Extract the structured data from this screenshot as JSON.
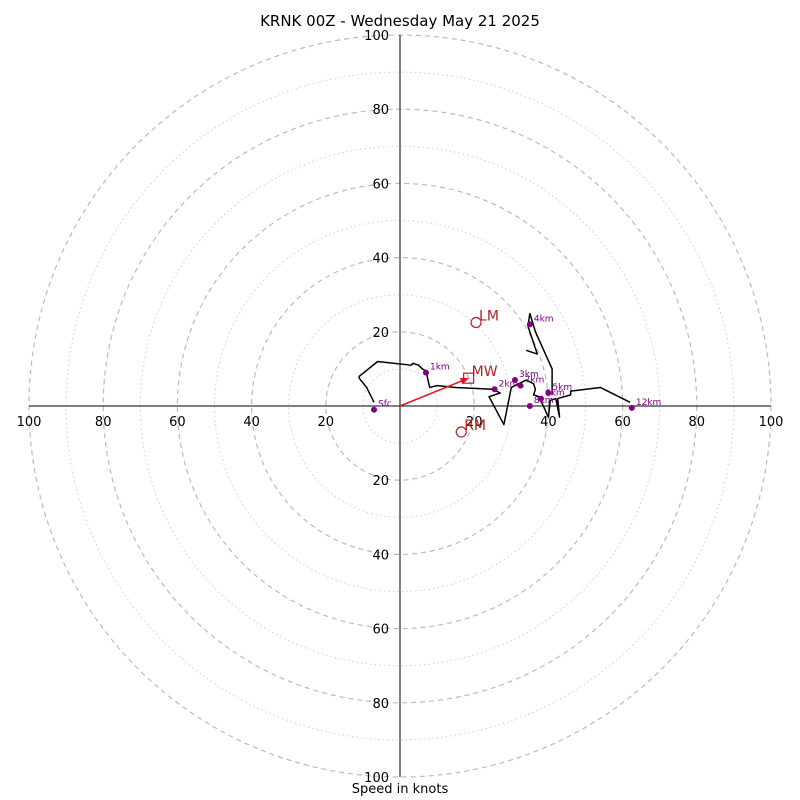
{
  "chart_data": {
    "type": "scatter",
    "title": "KRNK 00Z - Wednesday May 21 2025",
    "xlabel": "Speed in knots",
    "ylim": [
      -100,
      100
    ],
    "xlim": [
      -100,
      100
    ],
    "grid": true,
    "rings": [
      10,
      20,
      30,
      40,
      50,
      60,
      70,
      80,
      90,
      100
    ],
    "tick_labels": {
      "left": [
        "100",
        "80",
        "60",
        "40",
        "20"
      ],
      "right": [
        "20",
        "40",
        "60",
        "80",
        "100"
      ],
      "top": [
        "100",
        "80",
        "60",
        "40",
        "20"
      ],
      "bottom": [
        "20",
        "40",
        "60",
        "80",
        "100"
      ]
    },
    "series": [
      {
        "color": "#000000",
        "points": [
          [
            -7,
            1
          ],
          [
            -9,
            5
          ],
          [
            -11,
            7.5
          ],
          [
            -11,
            8
          ],
          [
            -6,
            12
          ],
          [
            3,
            11
          ],
          [
            3.5,
            11.5
          ],
          [
            5,
            11
          ],
          [
            6,
            10
          ],
          [
            7,
            9.5
          ],
          [
            8,
            5
          ],
          [
            10,
            5.5
          ],
          [
            15,
            5
          ],
          [
            25,
            4.5
          ],
          [
            27,
            3.5
          ],
          [
            24,
            2.5
          ],
          [
            28,
            -5
          ],
          [
            30,
            5
          ],
          [
            34,
            7
          ],
          [
            36,
            6
          ],
          [
            36.5,
            4.5
          ],
          [
            36,
            3
          ],
          [
            37.5,
            2.5
          ],
          [
            40,
            -3
          ],
          [
            40.5,
            1.5
          ],
          [
            42,
            2
          ],
          [
            43,
            -3
          ],
          [
            42.5,
            2
          ],
          [
            46,
            3
          ],
          [
            46,
            4
          ],
          [
            54,
            5
          ],
          [
            62,
            1
          ]
        ]
      },
      {
        "color": "#000000",
        "points": [
          [
            35,
            25
          ],
          [
            36.5,
            20
          ],
          [
            41,
            10
          ],
          [
            41,
            3
          ]
        ]
      },
      {
        "color": "#000000",
        "points": [
          [
            34,
            15
          ],
          [
            37,
            14
          ],
          [
            34.5,
            21.5
          ],
          [
            35,
            25
          ]
        ]
      }
    ],
    "levels": [
      {
        "label": "Sfc",
        "u": -7,
        "v": -1
      },
      {
        "label": "1km",
        "u": 7,
        "v": 9
      },
      {
        "label": "2km",
        "u": 25.5,
        "v": 4.5
      },
      {
        "label": "3km",
        "u": 31,
        "v": 7
      },
      {
        "label": "4km",
        "u": 35,
        "v": 22
      },
      {
        "label": "5km",
        "u": 40,
        "v": 3.5
      },
      {
        "label": "6km",
        "u": 38,
        "v": 2
      },
      {
        "label": "7km",
        "u": 32.5,
        "v": 5.5
      },
      {
        "label": "8km",
        "u": 35,
        "v": 0
      },
      {
        "label": "12km",
        "u": 62.5,
        "v": -0.5
      }
    ],
    "storm_motion": [
      {
        "label": "LM",
        "u": 20.5,
        "v": 22.5,
        "marker": "circle"
      },
      {
        "label": "MW",
        "u": 18.5,
        "v": 7.5,
        "marker": "square"
      },
      {
        "label": "RM",
        "u": 16.5,
        "v": -7,
        "marker": "circle"
      }
    ],
    "shear_vector": {
      "from": [
        0,
        0
      ],
      "to": [
        18.5,
        7.5
      ],
      "color": "#e8131f"
    },
    "colors": {
      "hodograph": "#000000",
      "levels": "#800080",
      "storm_motion": "#b22222",
      "shear": "#e8131f",
      "grid": "#bbbbbb"
    }
  }
}
